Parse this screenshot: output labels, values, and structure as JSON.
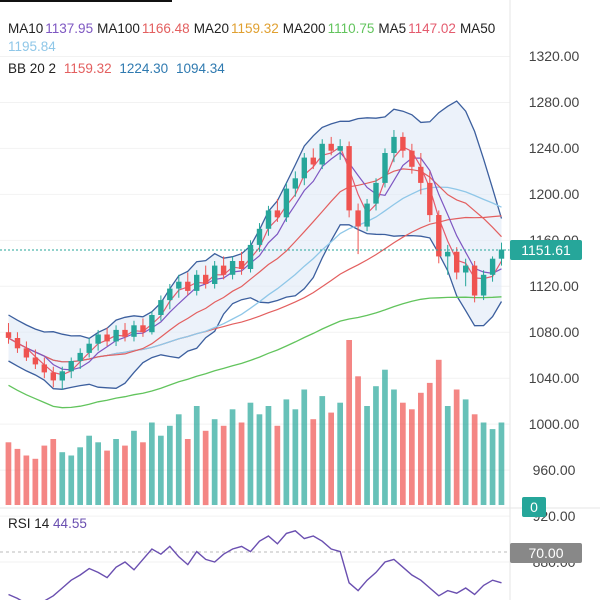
{
  "colors": {
    "up": "#26a69a",
    "down": "#ef5350",
    "ma5": "#e45b6e",
    "ma10": "#7e57c2",
    "ma20": "#e0a030",
    "ma50": "#e35f5f",
    "ma100": "#e35f5f",
    "ma200": "#62c45d",
    "ma50_value": "#8fc7e8",
    "bb_upper": "#e35f5f",
    "bb_mid": "#2f7ab0",
    "bb_line": "#3c5f9e",
    "rsi": "#6a4fb0",
    "last_price_tag": "#26a69a",
    "zero_tag": "#26a69a",
    "rsi_tag": "#888888"
  },
  "legend": {
    "row1": [
      {
        "label": "MA10",
        "value": "1137.95",
        "color": "#7e57c2"
      },
      {
        "label": "MA100",
        "value": "1166.48",
        "color": "#e35f5f"
      },
      {
        "label": "MA20",
        "value": "1159.32",
        "color": "#e0a030"
      },
      {
        "label": "MA200",
        "value": "1110.75",
        "color": "#62c45d"
      },
      {
        "label": "MA5",
        "value": "1147.02",
        "color": "#e45b6e"
      },
      {
        "label": "MA50",
        "value": "",
        "color": "#e35f5f"
      }
    ],
    "row2_value": "1195.84",
    "row3": {
      "label": "BB 20 2",
      "mid": "1159.32",
      "upper": "1224.30",
      "lower": "1094.34"
    }
  },
  "rsi_legend": {
    "label": "RSI 14",
    "value": "44.55"
  },
  "price_axis": {
    "ticks": [
      "1320.00",
      "1280.00",
      "1240.00",
      "1200.00",
      "1160.00",
      "1120.00",
      "1080.00",
      "1040.00",
      "1000.00",
      "960.00",
      "920.00",
      "880.00"
    ],
    "last_price": "1151.61",
    "volume_zero": "0",
    "rsi_level": "70.00"
  },
  "chart_data": {
    "type": "candlestick",
    "ylim": [
      860,
      1330
    ],
    "candles": [
      {
        "o": 1080,
        "h": 1088,
        "l": 1070,
        "c": 1075
      },
      {
        "o": 1075,
        "h": 1080,
        "l": 1062,
        "c": 1066
      },
      {
        "o": 1066,
        "h": 1072,
        "l": 1055,
        "c": 1058
      },
      {
        "o": 1058,
        "h": 1065,
        "l": 1048,
        "c": 1052
      },
      {
        "o": 1052,
        "h": 1058,
        "l": 1040,
        "c": 1045
      },
      {
        "o": 1045,
        "h": 1050,
        "l": 1032,
        "c": 1038
      },
      {
        "o": 1038,
        "h": 1050,
        "l": 1030,
        "c": 1046
      },
      {
        "o": 1046,
        "h": 1058,
        "l": 1040,
        "c": 1055
      },
      {
        "o": 1055,
        "h": 1066,
        "l": 1048,
        "c": 1062
      },
      {
        "o": 1062,
        "h": 1075,
        "l": 1058,
        "c": 1070
      },
      {
        "o": 1070,
        "h": 1082,
        "l": 1064,
        "c": 1078
      },
      {
        "o": 1078,
        "h": 1084,
        "l": 1068,
        "c": 1072
      },
      {
        "o": 1072,
        "h": 1086,
        "l": 1068,
        "c": 1082
      },
      {
        "o": 1082,
        "h": 1088,
        "l": 1072,
        "c": 1076
      },
      {
        "o": 1076,
        "h": 1090,
        "l": 1072,
        "c": 1086
      },
      {
        "o": 1086,
        "h": 1092,
        "l": 1076,
        "c": 1080
      },
      {
        "o": 1080,
        "h": 1098,
        "l": 1078,
        "c": 1095
      },
      {
        "o": 1095,
        "h": 1112,
        "l": 1090,
        "c": 1108
      },
      {
        "o": 1108,
        "h": 1122,
        "l": 1100,
        "c": 1118
      },
      {
        "o": 1118,
        "h": 1130,
        "l": 1110,
        "c": 1124
      },
      {
        "o": 1124,
        "h": 1132,
        "l": 1112,
        "c": 1116
      },
      {
        "o": 1116,
        "h": 1134,
        "l": 1112,
        "c": 1130
      },
      {
        "o": 1130,
        "h": 1138,
        "l": 1118,
        "c": 1122
      },
      {
        "o": 1122,
        "h": 1142,
        "l": 1118,
        "c": 1138
      },
      {
        "o": 1138,
        "h": 1146,
        "l": 1126,
        "c": 1130
      },
      {
        "o": 1130,
        "h": 1146,
        "l": 1126,
        "c": 1142
      },
      {
        "o": 1142,
        "h": 1150,
        "l": 1130,
        "c": 1135
      },
      {
        "o": 1135,
        "h": 1160,
        "l": 1132,
        "c": 1156
      },
      {
        "o": 1156,
        "h": 1175,
        "l": 1150,
        "c": 1170
      },
      {
        "o": 1170,
        "h": 1190,
        "l": 1164,
        "c": 1186
      },
      {
        "o": 1186,
        "h": 1196,
        "l": 1176,
        "c": 1180
      },
      {
        "o": 1180,
        "h": 1210,
        "l": 1176,
        "c": 1205
      },
      {
        "o": 1205,
        "h": 1220,
        "l": 1198,
        "c": 1214
      },
      {
        "o": 1214,
        "h": 1236,
        "l": 1208,
        "c": 1232
      },
      {
        "o": 1232,
        "h": 1240,
        "l": 1222,
        "c": 1226
      },
      {
        "o": 1226,
        "h": 1248,
        "l": 1222,
        "c": 1244
      },
      {
        "o": 1244,
        "h": 1250,
        "l": 1234,
        "c": 1238
      },
      {
        "o": 1238,
        "h": 1248,
        "l": 1230,
        "c": 1242
      },
      {
        "o": 1242,
        "h": 1246,
        "l": 1180,
        "c": 1186
      },
      {
        "o": 1186,
        "h": 1192,
        "l": 1148,
        "c": 1172
      },
      {
        "o": 1172,
        "h": 1196,
        "l": 1168,
        "c": 1192
      },
      {
        "o": 1192,
        "h": 1214,
        "l": 1186,
        "c": 1210
      },
      {
        "o": 1210,
        "h": 1240,
        "l": 1206,
        "c": 1236
      },
      {
        "o": 1236,
        "h": 1256,
        "l": 1228,
        "c": 1250
      },
      {
        "o": 1250,
        "h": 1254,
        "l": 1232,
        "c": 1238
      },
      {
        "o": 1238,
        "h": 1244,
        "l": 1218,
        "c": 1224
      },
      {
        "o": 1224,
        "h": 1236,
        "l": 1200,
        "c": 1210
      },
      {
        "o": 1210,
        "h": 1220,
        "l": 1176,
        "c": 1182
      },
      {
        "o": 1182,
        "h": 1186,
        "l": 1140,
        "c": 1146
      },
      {
        "o": 1146,
        "h": 1156,
        "l": 1130,
        "c": 1150
      },
      {
        "o": 1150,
        "h": 1154,
        "l": 1126,
        "c": 1132
      },
      {
        "o": 1132,
        "h": 1144,
        "l": 1120,
        "c": 1138
      },
      {
        "o": 1138,
        "h": 1142,
        "l": 1106,
        "c": 1112
      },
      {
        "o": 1112,
        "h": 1134,
        "l": 1108,
        "c": 1130
      },
      {
        "o": 1130,
        "h": 1146,
        "l": 1124,
        "c": 1144
      },
      {
        "o": 1144,
        "h": 1158,
        "l": 1138,
        "c": 1152
      }
    ],
    "volume": [
      0.38,
      0.34,
      0.3,
      0.28,
      0.36,
      0.4,
      0.32,
      0.3,
      0.35,
      0.42,
      0.38,
      0.33,
      0.4,
      0.36,
      0.45,
      0.38,
      0.5,
      0.42,
      0.48,
      0.55,
      0.4,
      0.6,
      0.45,
      0.52,
      0.48,
      0.58,
      0.5,
      0.62,
      0.55,
      0.6,
      0.48,
      0.64,
      0.58,
      0.7,
      0.52,
      0.66,
      0.56,
      0.62,
      1.0,
      0.78,
      0.6,
      0.72,
      0.82,
      0.7,
      0.62,
      0.58,
      0.68,
      0.74,
      0.88,
      0.6,
      0.7,
      0.64,
      0.55,
      0.5,
      0.46,
      0.5
    ],
    "rsi": [
      35,
      32,
      28,
      26,
      30,
      34,
      40,
      46,
      50,
      55,
      52,
      48,
      56,
      60,
      54,
      62,
      70,
      66,
      72,
      64,
      58,
      68,
      62,
      60,
      66,
      70,
      72,
      68,
      76,
      80,
      74,
      82,
      84,
      78,
      80,
      76,
      70,
      68,
      44,
      38,
      46,
      52,
      60,
      62,
      56,
      50,
      46,
      40,
      34,
      38,
      36,
      40,
      35,
      42,
      46,
      44
    ],
    "rsi_ylim": [
      0,
      100
    ]
  }
}
